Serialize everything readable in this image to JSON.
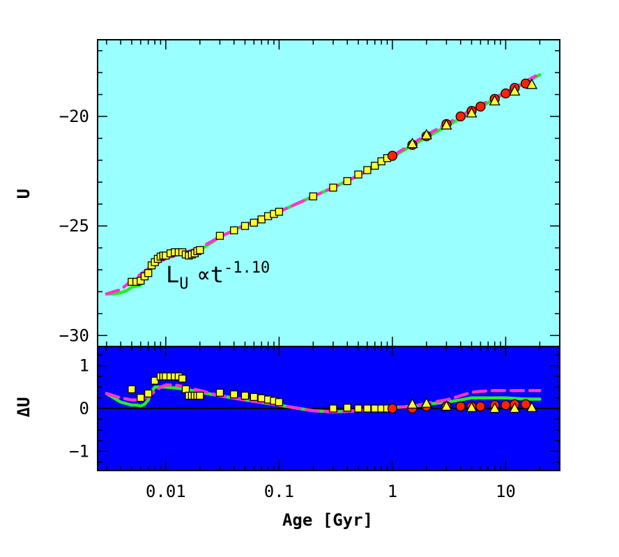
{
  "colors": {
    "top_panel_bg": "#99ffff",
    "bottom_panel_bg": "#0000ff",
    "square_fill": "#ffff33",
    "circle_fill": "#ff2200",
    "triangle_fill": "#ffff33",
    "green_line": "#22ee22",
    "magenta_dash": "#ff33cc",
    "frame": "#000000"
  },
  "chart_data": [
    {
      "panel": "top",
      "type": "scatter",
      "xlabel": "Age [Gyr]",
      "ylabel": "U",
      "x_scale": "log",
      "xlim": [
        0.0025,
        30
      ],
      "ylim": [
        -16.5,
        -30.5
      ],
      "y_ticks": [
        -30,
        -25,
        -20
      ],
      "x_ticks": [
        0.01,
        0.1,
        1,
        10
      ],
      "x_tick_labels": [
        "0.01",
        "0.1",
        "1",
        "10"
      ],
      "annotation": {
        "main": "L",
        "sub": "U",
        "rel": "∝t",
        "sup": "-1.10"
      },
      "series": [
        {
          "marker": "square",
          "x": [
            0.005,
            0.0055,
            0.006,
            0.0065,
            0.007,
            0.0075,
            0.008,
            0.0085,
            0.009,
            0.0095,
            0.01,
            0.011,
            0.012,
            0.013,
            0.014,
            0.015,
            0.016,
            0.017,
            0.018,
            0.019,
            0.02,
            0.03,
            0.04,
            0.05,
            0.06,
            0.07,
            0.08,
            0.09,
            0.1,
            0.2,
            0.3,
            0.4,
            0.5,
            0.6,
            0.7,
            0.8,
            0.9
          ],
          "y": [
            -27.55,
            -27.55,
            -27.5,
            -27.3,
            -27.15,
            -26.8,
            -26.65,
            -26.5,
            -26.4,
            -26.35,
            -26.35,
            -26.25,
            -26.2,
            -26.2,
            -26.2,
            -26.3,
            -26.35,
            -26.3,
            -26.25,
            -26.15,
            -26.1,
            -25.45,
            -25.2,
            -25.0,
            -24.85,
            -24.7,
            -24.55,
            -24.45,
            -24.35,
            -23.65,
            -23.25,
            -22.95,
            -22.65,
            -22.45,
            -22.25,
            -22.05,
            -21.9
          ]
        },
        {
          "marker": "circle",
          "x": [
            1.0,
            1.5,
            2.0,
            3.0,
            4.0,
            5.0,
            6.0,
            8.0,
            10.0,
            12.0,
            15.0
          ],
          "y": [
            -21.8,
            -21.3,
            -20.9,
            -20.35,
            -20.0,
            -19.75,
            -19.55,
            -19.2,
            -18.95,
            -18.7,
            -18.5
          ]
        },
        {
          "marker": "triangle",
          "x": [
            1.5,
            2.0,
            3.0,
            5.0,
            8.0,
            12.0,
            17.0
          ],
          "y": [
            -21.25,
            -20.85,
            -20.4,
            -19.85,
            -19.3,
            -18.85,
            -18.55
          ]
        },
        {
          "style": "solid-line",
          "x": [
            0.003,
            0.0035,
            0.004,
            0.0045,
            0.005,
            0.0055,
            0.006,
            0.0065,
            0.007,
            0.0075,
            0.008,
            0.009,
            0.01,
            0.012,
            0.014,
            0.017,
            0.02,
            0.03,
            0.05,
            0.1,
            0.2,
            0.3,
            0.5,
            1.0,
            2.0,
            3.0,
            5.0,
            8.0,
            10.0,
            15.0,
            20.0
          ],
          "y": [
            -28.1,
            -28.1,
            -28.05,
            -27.95,
            -27.8,
            -27.75,
            -27.7,
            -27.4,
            -27.0,
            -26.8,
            -26.7,
            -26.5,
            -26.4,
            -26.3,
            -26.25,
            -26.25,
            -26.1,
            -25.5,
            -24.95,
            -24.35,
            -23.65,
            -23.25,
            -22.7,
            -21.85,
            -20.95,
            -20.45,
            -19.8,
            -19.2,
            -18.95,
            -18.45,
            -18.1
          ]
        },
        {
          "style": "dashed-line",
          "x": [
            0.003,
            0.004,
            0.005,
            0.006,
            0.007,
            0.008,
            0.009,
            0.01,
            0.012,
            0.015,
            0.02,
            0.03,
            0.05,
            0.1,
            0.2,
            0.3,
            0.5,
            1.0,
            2.0,
            3.0,
            5.0,
            8.0,
            10.0,
            15.0,
            20.0
          ],
          "y": [
            -28.1,
            -27.9,
            -27.5,
            -27.2,
            -26.95,
            -26.8,
            -26.6,
            -26.5,
            -26.35,
            -26.2,
            -26.0,
            -25.5,
            -24.95,
            -24.35,
            -23.65,
            -23.25,
            -22.7,
            -21.8,
            -20.85,
            -20.35,
            -19.7,
            -19.15,
            -18.9,
            -18.4,
            -18.05
          ]
        }
      ]
    },
    {
      "panel": "bottom",
      "type": "scatter",
      "xlabel": "Age [Gyr]",
      "ylabel": "ΔU",
      "x_scale": "log",
      "xlim": [
        0.0025,
        30
      ],
      "ylim": [
        1.45,
        -1.45
      ],
      "y_ticks": [
        -1,
        0,
        1
      ],
      "y_tick_labels": [
        "−1",
        "0",
        "1"
      ],
      "x_ticks": [
        0.01,
        0.1,
        1,
        10
      ],
      "x_tick_labels": [
        "0.01",
        "0.1",
        "1",
        "10"
      ],
      "zero_line": 0,
      "series": [
        {
          "marker": "square",
          "x": [
            0.005,
            0.006,
            0.007,
            0.008,
            0.009,
            0.0095,
            0.01,
            0.011,
            0.012,
            0.013,
            0.014,
            0.015,
            0.016,
            0.017,
            0.018,
            0.019,
            0.02,
            0.03,
            0.04,
            0.05,
            0.06,
            0.07,
            0.08,
            0.09,
            0.1,
            0.3,
            0.4,
            0.5,
            0.6,
            0.7,
            0.8,
            0.9
          ],
          "y": [
            0.45,
            0.25,
            0.35,
            0.65,
            0.75,
            0.75,
            0.75,
            0.75,
            0.75,
            0.75,
            0.7,
            0.45,
            0.3,
            0.3,
            0.3,
            0.3,
            0.3,
            0.37,
            0.33,
            0.3,
            0.27,
            0.24,
            0.21,
            0.18,
            0.15,
            0.0,
            0.02,
            0.0,
            0.0,
            0.0,
            0.0,
            0.0
          ]
        },
        {
          "marker": "circle",
          "x": [
            1.0,
            1.5,
            2.0,
            3.0,
            4.0,
            5.0,
            6.0,
            8.0,
            10.0,
            12.0,
            15.0
          ],
          "y": [
            0.0,
            0.0,
            0.05,
            0.05,
            0.05,
            0.05,
            0.05,
            0.08,
            0.08,
            0.1,
            0.1
          ]
        },
        {
          "marker": "triangle",
          "x": [
            1.5,
            2.0,
            3.0,
            5.0,
            8.0,
            12.0,
            17.0
          ],
          "y": [
            0.1,
            0.12,
            0.05,
            0.02,
            0.0,
            0.0,
            0.02
          ]
        },
        {
          "style": "solid-line",
          "x": [
            0.003,
            0.004,
            0.005,
            0.0055,
            0.006,
            0.0065,
            0.007,
            0.0075,
            0.008,
            0.009,
            0.01,
            0.012,
            0.015,
            0.02,
            0.03,
            0.05,
            0.1,
            0.15,
            0.2,
            0.3,
            0.5,
            0.8,
            1.0,
            1.5,
            2.0,
            3.0,
            4.0,
            5.0,
            6.0,
            8.0,
            10.0,
            15.0,
            20.0
          ],
          "y": [
            0.35,
            0.15,
            0.08,
            0.08,
            0.06,
            0.1,
            0.2,
            0.4,
            0.5,
            0.5,
            0.5,
            0.48,
            0.45,
            0.38,
            0.3,
            0.2,
            0.08,
            0.0,
            -0.05,
            -0.08,
            -0.05,
            0.0,
            0.02,
            0.05,
            0.1,
            0.15,
            0.2,
            0.25,
            0.25,
            0.25,
            0.25,
            0.22,
            0.22
          ]
        },
        {
          "style": "dashed-line",
          "x": [
            0.003,
            0.004,
            0.005,
            0.006,
            0.007,
            0.008,
            0.009,
            0.01,
            0.012,
            0.015,
            0.02,
            0.03,
            0.05,
            0.1,
            0.15,
            0.2,
            0.3,
            0.5,
            0.8,
            1.0,
            1.5,
            2.0,
            3.0,
            4.0,
            5.0,
            6.0,
            8.0,
            10.0,
            15.0,
            20.0
          ],
          "y": [
            0.35,
            0.25,
            0.2,
            0.2,
            0.28,
            0.4,
            0.5,
            0.55,
            0.55,
            0.5,
            0.42,
            0.3,
            0.2,
            0.08,
            0.0,
            -0.05,
            -0.08,
            -0.05,
            0.0,
            0.02,
            0.05,
            0.12,
            0.2,
            0.3,
            0.38,
            0.4,
            0.42,
            0.42,
            0.42,
            0.42
          ]
        }
      ]
    }
  ]
}
